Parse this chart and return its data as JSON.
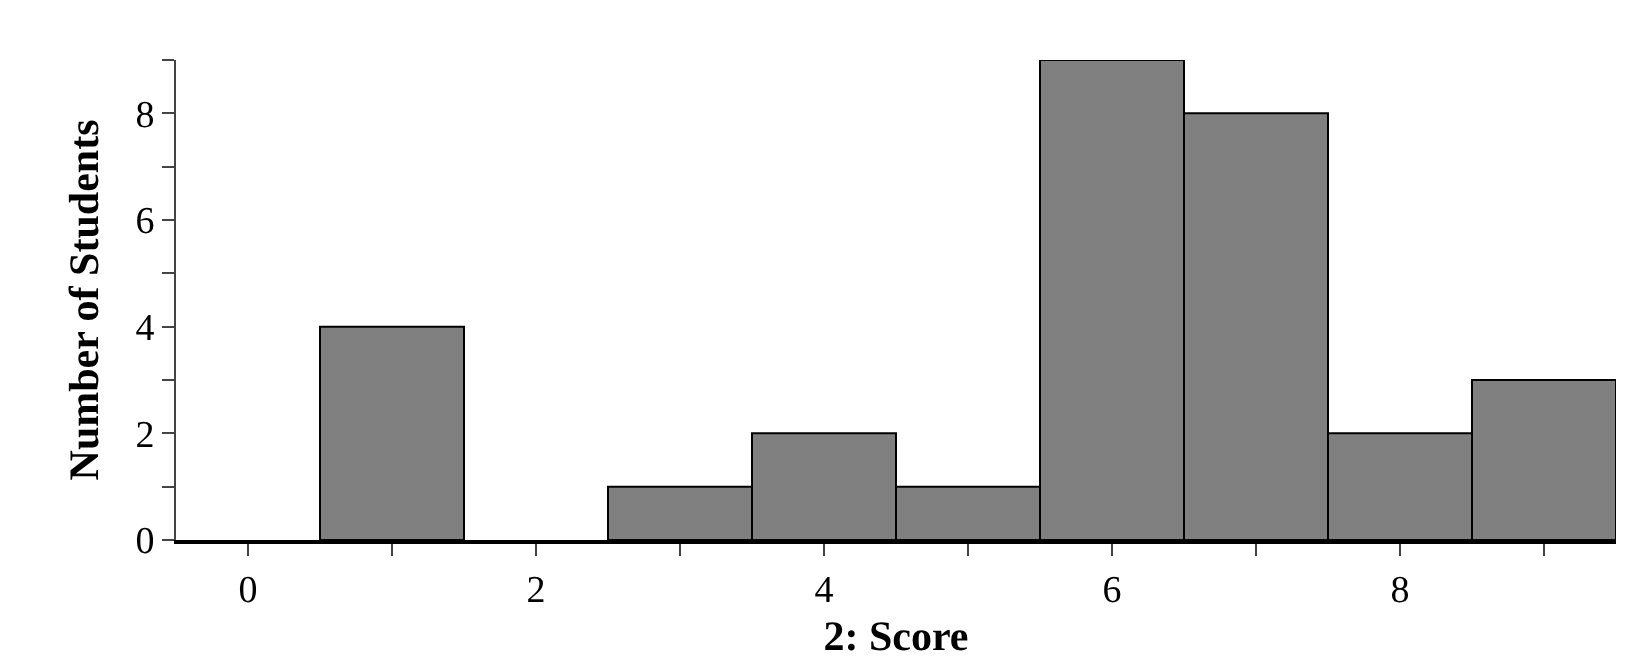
{
  "chart_data": {
    "type": "histogram",
    "xlabel": "2: Score",
    "ylabel": "Number of Students",
    "bins": [
      -0.5,
      0.5,
      1.5,
      2.5,
      3.5,
      4.5,
      5.5,
      6.5,
      7.5,
      8.5,
      9.5
    ],
    "values": [
      0,
      4,
      0,
      1,
      2,
      1,
      9,
      8,
      2,
      3
    ],
    "color": "#808080",
    "xlim": [
      -0.5,
      9.5
    ],
    "xticks": [
      0,
      {
        "value": 1,
        "label": null
      },
      2,
      {
        "value": 3,
        "label": null
      },
      4,
      {
        "value": 5,
        "label": null
      },
      6,
      {
        "value": 7,
        "label": null
      },
      8,
      {
        "value": 9,
        "label": null
      }
    ],
    "ylim": [
      0,
      9
    ],
    "yticks": [
      0,
      {
        "value": 1,
        "label": null
      },
      2,
      {
        "value": 3,
        "label": null
      },
      4,
      {
        "value": 5,
        "label": null
      },
      6,
      {
        "value": 7,
        "label": null
      },
      8,
      {
        "value": 9,
        "label": null
      }
    ],
    "grid": false
  }
}
